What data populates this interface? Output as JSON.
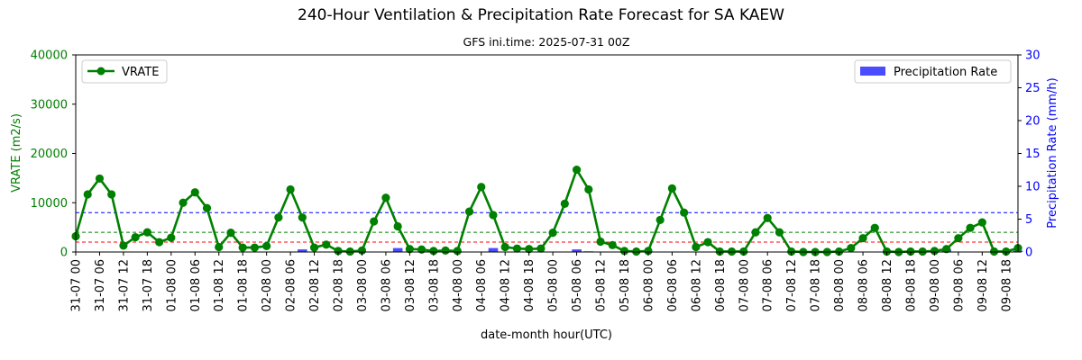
{
  "chart_data": {
    "type": "line",
    "title": "240-Hour Ventilation & Precipitation Rate Forecast for SA KAEW",
    "subtitle": "GFS ini.time: 2025-07-31 00Z",
    "xlabel": "date-month hour(UTC)",
    "ylabel_left": "VRATE (m2/s)",
    "ylabel_right": "Precipitation Rate (mm/h)",
    "ylim_left": [
      0,
      40000
    ],
    "ylim_right": [
      0,
      30
    ],
    "yticks_left": [
      "0",
      "10000",
      "20000",
      "30000",
      "40000"
    ],
    "yticks_right": [
      "0",
      "5",
      "10",
      "15",
      "20",
      "25",
      "30"
    ],
    "x_step_hours": 3,
    "x_count": 80,
    "x_tick_labels": [
      "31-07 00",
      "31-07 06",
      "31-07 12",
      "31-07 18",
      "01-08 00",
      "01-08 06",
      "01-08 12",
      "01-08 18",
      "02-08 00",
      "02-08 06",
      "02-08 12",
      "02-08 18",
      "03-08 00",
      "03-08 06",
      "03-08 12",
      "03-08 18",
      "04-08 00",
      "04-08 06",
      "04-08 12",
      "04-08 18",
      "05-08 00",
      "05-08 06",
      "05-08 12",
      "05-08 18",
      "06-08 00",
      "06-08 06",
      "06-08 12",
      "06-08 18",
      "07-08 00",
      "07-08 06",
      "07-08 12",
      "07-08 18",
      "08-08 00",
      "08-08 06",
      "08-08 12",
      "08-08 18",
      "09-08 00",
      "09-08 06",
      "09-08 12",
      "09-08 18"
    ],
    "series": [
      {
        "name": "VRATE",
        "axis": "left",
        "color": "#008000",
        "values": [
          3200,
          11700,
          14900,
          11700,
          1300,
          3000,
          4000,
          2000,
          2900,
          10000,
          12100,
          8900,
          1000,
          3900,
          900,
          900,
          1200,
          7000,
          12700,
          7000,
          900,
          1500,
          200,
          100,
          300,
          6200,
          11000,
          5200,
          600,
          500,
          200,
          300,
          200,
          8200,
          13200,
          7500,
          1000,
          700,
          600,
          700,
          3900,
          9800,
          16700,
          12700,
          2100,
          1400,
          200,
          100,
          200,
          6500,
          12900,
          8000,
          1000,
          2000,
          100,
          100,
          100,
          4000,
          6900,
          4000,
          100,
          0,
          0,
          0,
          100,
          800,
          2800,
          4900,
          100,
          0,
          100,
          100,
          200,
          600,
          2800,
          4900,
          6000,
          100,
          100,
          800
        ]
      },
      {
        "name": "Precipitation Rate",
        "axis": "right",
        "color": "#0000ff",
        "type": "bar",
        "values": [
          0,
          0,
          0,
          0,
          0,
          0,
          0,
          0,
          0,
          0,
          0,
          0,
          0,
          0,
          0,
          0,
          0,
          0,
          0,
          0.4,
          0,
          0,
          0,
          0,
          0,
          0,
          0,
          0.6,
          0,
          0,
          0,
          0,
          0,
          0,
          0,
          0.6,
          0,
          0,
          0,
          0,
          0,
          0,
          0.4,
          0.1,
          0,
          0,
          0,
          0,
          0,
          0,
          0,
          0,
          0,
          0,
          0,
          0,
          0,
          0,
          0,
          0,
          0,
          0,
          0,
          0,
          0,
          0,
          0,
          0,
          0,
          0,
          0,
          0,
          0,
          0.4,
          0,
          0,
          0,
          0,
          0,
          0.2
        ]
      }
    ],
    "reference_lines": [
      {
        "value": 8000,
        "axis": "left",
        "color": "#0000ff",
        "style": "dashed"
      },
      {
        "value": 4000,
        "axis": "left",
        "color": "#008000",
        "style": "dashed"
      },
      {
        "value": 2000,
        "axis": "left",
        "color": "#ff0000",
        "style": "dashed"
      }
    ],
    "legend_left": "VRATE",
    "legend_right": "Precipitation Rate",
    "grid": false
  }
}
